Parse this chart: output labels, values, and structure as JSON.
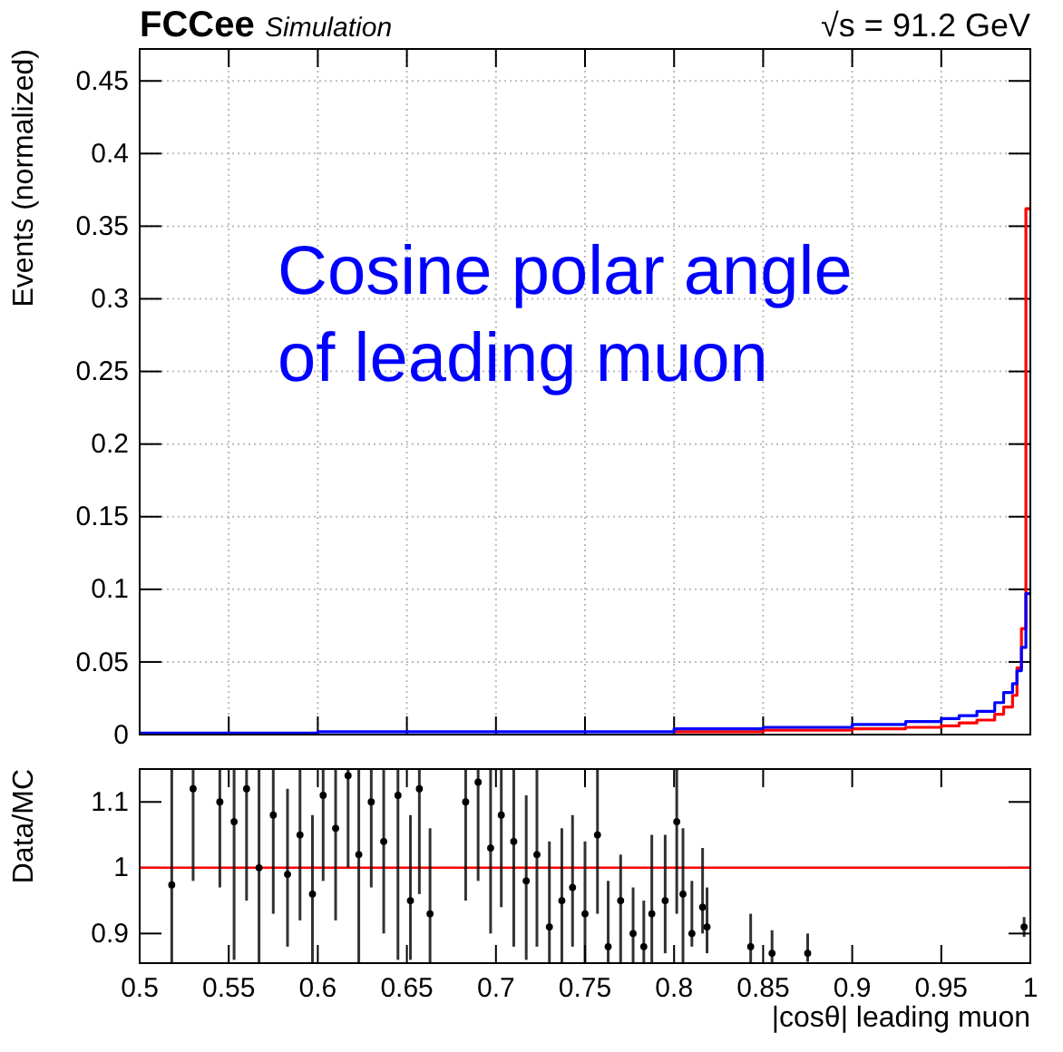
{
  "chart_data": [
    {
      "type": "step",
      "ylabel": "Events (normalized)",
      "annotations": [
        "FCCee",
        "Simulation",
        "√s = 91.2 GeV",
        "Cosine polar angle of leading muon"
      ],
      "xlim": [
        0.5,
        1
      ],
      "xticks": [
        0.5,
        0.55,
        0.6,
        0.65,
        0.7,
        0.75,
        0.8,
        0.85,
        0.9,
        0.95,
        1
      ],
      "ylim": [
        0,
        0.472
      ],
      "yticks": [
        0,
        0.05,
        0.1,
        0.15,
        0.2,
        0.25,
        0.3,
        0.35,
        0.4,
        0.45
      ],
      "grid": true,
      "tick_labels": "y",
      "x": [
        0.5,
        0.6,
        0.7,
        0.8,
        0.85,
        0.9,
        0.93,
        0.95,
        0.96,
        0.97,
        0.98,
        0.985,
        0.99,
        0.9925,
        0.995,
        0.9975,
        1.0
      ],
      "series": [
        {
          "color": "#ff0000",
          "values": [
            null,
            null,
            null,
            0.002,
            0.003,
            0.004,
            0.005,
            0.006,
            0.008,
            0.01,
            0.014,
            0.019,
            0.027,
            0.046,
            0.073,
            0.362,
            0.362
          ]
        },
        {
          "color": "#0000ff",
          "values": [
            0.001,
            0.002,
            0.002,
            0.004,
            0.005,
            0.007,
            0.009,
            0.011,
            0.013,
            0.016,
            0.022,
            0.029,
            0.035,
            0.044,
            0.06,
            0.097,
            0.097
          ]
        }
      ]
    },
    {
      "type": "scatter",
      "xlabel": "|cosθ| leading muon",
      "ylabel": "Data/MC",
      "marker": "circle",
      "xlim": [
        0.5,
        1
      ],
      "xticks": [
        0.5,
        0.55,
        0.6,
        0.65,
        0.7,
        0.75,
        0.8,
        0.85,
        0.9,
        0.95,
        1
      ],
      "ylim": [
        0.855,
        1.15
      ],
      "yticks": [
        0.9,
        1,
        1.1
      ],
      "ref_lines": [
        {
          "axis": "y",
          "value": 1,
          "color": "#ff0000"
        }
      ],
      "x": [
        0.518,
        0.53,
        0.545,
        0.553,
        0.56,
        0.567,
        0.575,
        0.583,
        0.59,
        0.597,
        0.603,
        0.61,
        0.617,
        0.623,
        0.63,
        0.637,
        0.645,
        0.652,
        0.657,
        0.663,
        0.683,
        0.69,
        0.697,
        0.703,
        0.71,
        0.717,
        0.723,
        0.73,
        0.737,
        0.743,
        0.75,
        0.757,
        0.763,
        0.77,
        0.777,
        0.783,
        0.7875,
        0.795,
        0.8015,
        0.805,
        0.81,
        0.816,
        0.8185,
        0.843,
        0.855,
        0.875,
        0.9965
      ],
      "series": [
        {
          "color": "#000000",
          "values": [
            0.974,
            1.12,
            1.1,
            1.07,
            1.12,
            1.0,
            1.08,
            0.99,
            1.05,
            0.96,
            1.11,
            1.06,
            1.14,
            1.02,
            1.1,
            1.04,
            1.11,
            0.95,
            1.12,
            0.93,
            1.1,
            1.13,
            1.03,
            1.08,
            1.04,
            0.98,
            1.02,
            0.91,
            0.95,
            0.97,
            0.93,
            1.05,
            0.88,
            0.95,
            0.9,
            0.88,
            0.93,
            0.95,
            1.07,
            0.96,
            0.9,
            0.94,
            0.91,
            0.88,
            0.87,
            0.87,
            0.91
          ],
          "errors": [
            [
              0.855,
              1.15
            ],
            [
              0.98,
              1.15
            ],
            [
              0.97,
              1.15
            ],
            [
              0.86,
              1.15
            ],
            [
              0.95,
              1.15
            ],
            [
              0.855,
              1.15
            ],
            [
              0.93,
              1.15
            ],
            [
              0.88,
              1.12
            ],
            [
              0.92,
              1.15
            ],
            [
              0.855,
              1.08
            ],
            [
              0.98,
              1.15
            ],
            [
              0.92,
              1.15
            ],
            [
              1.0,
              1.15
            ],
            [
              0.855,
              1.15
            ],
            [
              0.97,
              1.15
            ],
            [
              0.9,
              1.15
            ],
            [
              0.86,
              1.15
            ],
            [
              0.86,
              1.08
            ],
            [
              0.96,
              1.15
            ],
            [
              0.855,
              1.06
            ],
            [
              0.95,
              1.15
            ],
            [
              0.98,
              1.15
            ],
            [
              0.9,
              1.15
            ],
            [
              0.94,
              1.15
            ],
            [
              0.88,
              1.15
            ],
            [
              0.86,
              1.11
            ],
            [
              0.88,
              1.15
            ],
            [
              0.855,
              1.04
            ],
            [
              0.855,
              1.06
            ],
            [
              0.88,
              1.08
            ],
            [
              0.855,
              1.04
            ],
            [
              0.93,
              1.15
            ],
            [
              0.855,
              0.98
            ],
            [
              0.855,
              1.02
            ],
            [
              0.855,
              0.97
            ],
            [
              0.855,
              0.95
            ],
            [
              0.855,
              1.05
            ],
            [
              0.87,
              1.05
            ],
            [
              0.93,
              1.15
            ],
            [
              0.855,
              1.06
            ],
            [
              0.88,
              0.98
            ],
            [
              0.9,
              1.03
            ],
            [
              0.87,
              0.97
            ],
            [
              0.855,
              0.93
            ],
            [
              0.855,
              0.905
            ],
            [
              0.857,
              0.9
            ],
            [
              0.895,
              0.925
            ]
          ]
        }
      ]
    }
  ]
}
